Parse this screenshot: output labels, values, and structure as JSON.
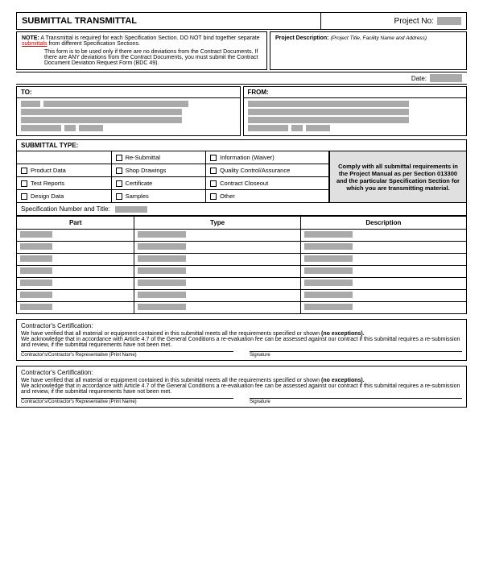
{
  "header": {
    "title": "SUBMITTAL TRANSMITTAL",
    "project_no_label": "Project No:"
  },
  "note": {
    "label": "NOTE:",
    "text1": "A Transmittal is required for each Specification Section. DO NOT bind together separate ",
    "link": "submittals",
    "text1b": " from different Specification Sections.",
    "text2": "This form is to be used only if there are no deviations from the Contract Documents. If there are ANY deviations from the Contract Documents, you must submit the Contract Document Deviation Request Form (BDC 49)."
  },
  "proj_desc": {
    "label": "Project Description:",
    "hint": "(Project Title, Facility Name and Address)"
  },
  "date_label": "Date:",
  "to_label": "TO:",
  "from_label": "FROM:",
  "sub_type": {
    "hdr": "SUBMITTAL TYPE:",
    "items": [
      [
        "",
        "Re-Submittal",
        "Information (Waiver)"
      ],
      [
        "Product Data",
        "Shop Drawings",
        "Quality Control/Assurance"
      ],
      [
        "Test Reports",
        "Certificate",
        "Contract Closeout"
      ],
      [
        "Design Data",
        "Samples",
        "Other"
      ]
    ],
    "comply": "Comply with all submittal requirements in the Project Manual as per Section 013300 and the particular Specification Section for which you are transmitting material."
  },
  "spec_title": "Specification Number and Title:",
  "parts": {
    "headers": [
      "Part",
      "Type",
      "Description"
    ],
    "rows": 7
  },
  "cert": {
    "title": "Contractor's Certification:",
    "text1a": "We have verified that all material or equipment contained in this submittal meets all the requirements specified or shown ",
    "text1b": "(no exceptions).",
    "text2": "We acknowledge that in accordance with Article 4.7 of the General Conditions a re-evaluation fee can be assessed against our contract if this submittal requires a re-submission and review, if the submittal requirements have not been met.",
    "sig_left": "Contractor's/Contractor's Representative (Print Name)",
    "sig_right": "Signature"
  }
}
